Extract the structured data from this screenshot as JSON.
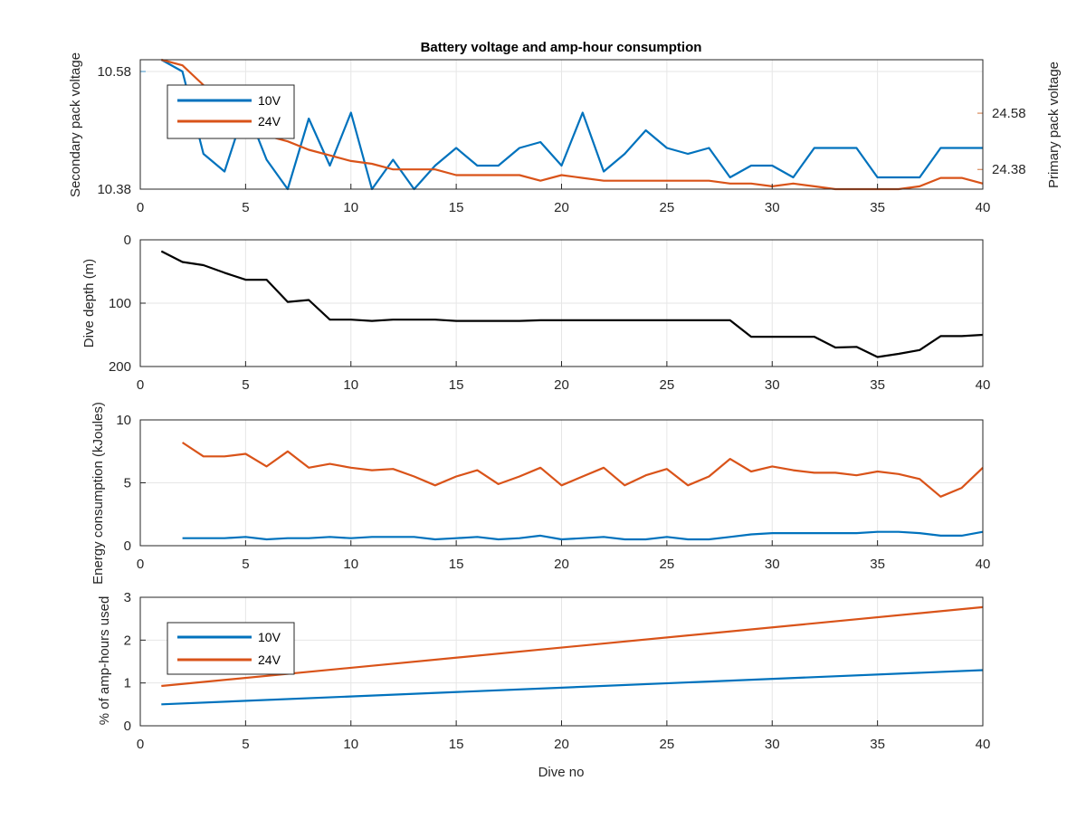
{
  "figure": {
    "title": "Battery voltage and amp-hour consumption",
    "xlabel": "Dive no"
  },
  "colors": {
    "blue": "#0072BD",
    "orange": "#D95319",
    "black": "#000000",
    "left_axis_blue": "#3a8fc4",
    "right_axis_orange": "#d2733a",
    "grid": "#e6e6e6",
    "axes": "#262626"
  },
  "chart_data": [
    {
      "type": "line",
      "title": "Battery voltage and amp-hour consumption",
      "xlabel": "",
      "ylabel": "Secondary pack voltage",
      "ylabel_right": "Primary pack voltage",
      "xlim": [
        0,
        40
      ],
      "ylim": [
        10.38,
        10.6
      ],
      "ylim_right": [
        24.31,
        24.77
      ],
      "xticks": [
        0,
        5,
        10,
        15,
        20,
        25,
        30,
        35,
        40
      ],
      "yticks": [
        "10.38",
        "10.58"
      ],
      "yticks_right": [
        "24.38",
        "24.58"
      ],
      "grid": true,
      "legend": {
        "location": "top-left",
        "entries": [
          "10V",
          "24V"
        ]
      },
      "series": [
        {
          "name": "10V",
          "axis": "left",
          "color": "blue",
          "x": [
            1,
            2,
            3,
            4,
            5,
            6,
            7,
            8,
            9,
            10,
            11,
            12,
            13,
            14,
            15,
            16,
            17,
            18,
            19,
            20,
            21,
            22,
            23,
            24,
            25,
            26,
            27,
            28,
            29,
            30,
            31,
            32,
            33,
            34,
            35,
            36,
            37,
            38,
            39,
            40
          ],
          "y": [
            10.6,
            10.58,
            10.44,
            10.41,
            10.52,
            10.43,
            10.38,
            10.5,
            10.42,
            10.51,
            10.38,
            10.43,
            10.38,
            10.42,
            10.45,
            10.42,
            10.42,
            10.45,
            10.46,
            10.42,
            10.51,
            10.41,
            10.44,
            10.48,
            10.45,
            10.44,
            10.45,
            10.4,
            10.42,
            10.42,
            10.4,
            10.45,
            10.45,
            10.45,
            10.4,
            10.4,
            10.4,
            10.45,
            10.45,
            10.45
          ]
        },
        {
          "name": "24V",
          "axis": "right",
          "color": "orange",
          "x": [
            1,
            2,
            3,
            4,
            5,
            6,
            7,
            8,
            9,
            10,
            11,
            12,
            13,
            14,
            15,
            16,
            17,
            18,
            19,
            20,
            21,
            22,
            23,
            24,
            25,
            26,
            27,
            28,
            29,
            30,
            31,
            32,
            33,
            34,
            35,
            36,
            37,
            38,
            39,
            40
          ],
          "y": [
            24.77,
            24.75,
            24.68,
            24.58,
            24.52,
            24.5,
            24.48,
            24.45,
            24.43,
            24.41,
            24.4,
            24.38,
            24.38,
            24.38,
            24.36,
            24.36,
            24.36,
            24.36,
            24.34,
            24.36,
            24.35,
            24.34,
            24.34,
            24.34,
            24.34,
            24.34,
            24.34,
            24.33,
            24.33,
            24.32,
            24.33,
            24.32,
            24.31,
            24.31,
            24.31,
            24.31,
            24.32,
            24.35,
            24.35,
            24.33
          ]
        }
      ]
    },
    {
      "type": "line",
      "xlabel": "",
      "ylabel": "Dive depth (m)",
      "xlim": [
        0,
        40
      ],
      "ylim": [
        0,
        200
      ],
      "y_reversed": true,
      "xticks": [
        0,
        5,
        10,
        15,
        20,
        25,
        30,
        35,
        40
      ],
      "yticks": [
        0,
        100,
        200
      ],
      "grid": true,
      "series": [
        {
          "color": "black",
          "x": [
            1,
            2,
            3,
            4,
            5,
            6,
            7,
            8,
            9,
            10,
            11,
            12,
            13,
            14,
            15,
            16,
            17,
            18,
            19,
            20,
            21,
            22,
            23,
            24,
            25,
            26,
            27,
            28,
            29,
            30,
            31,
            32,
            33,
            34,
            35,
            36,
            37,
            38,
            39,
            40
          ],
          "y": [
            18,
            35,
            40,
            52,
            63,
            63,
            98,
            95,
            126,
            126,
            128,
            126,
            126,
            126,
            128,
            128,
            128,
            128,
            127,
            127,
            127,
            127,
            127,
            127,
            127,
            127,
            127,
            127,
            153,
            153,
            153,
            153,
            170,
            169,
            185,
            180,
            174,
            152,
            152,
            150
          ]
        }
      ]
    },
    {
      "type": "line",
      "xlabel": "",
      "ylabel": "Energy consumption (kJoules)",
      "xlim": [
        0,
        40
      ],
      "ylim": [
        0,
        10
      ],
      "xticks": [
        0,
        5,
        10,
        15,
        20,
        25,
        30,
        35,
        40
      ],
      "yticks": [
        0,
        5,
        10
      ],
      "grid": true,
      "series": [
        {
          "name": "10V",
          "color": "blue",
          "x": [
            2,
            3,
            4,
            5,
            6,
            7,
            8,
            9,
            10,
            11,
            12,
            13,
            14,
            15,
            16,
            17,
            18,
            19,
            20,
            21,
            22,
            23,
            24,
            25,
            26,
            27,
            28,
            29,
            30,
            31,
            32,
            33,
            34,
            35,
            36,
            37,
            38,
            39,
            40
          ],
          "y": [
            0.6,
            0.6,
            0.6,
            0.7,
            0.5,
            0.6,
            0.6,
            0.7,
            0.6,
            0.7,
            0.7,
            0.7,
            0.5,
            0.6,
            0.7,
            0.5,
            0.6,
            0.8,
            0.5,
            0.6,
            0.7,
            0.5,
            0.5,
            0.7,
            0.5,
            0.5,
            0.7,
            0.9,
            1.0,
            1.0,
            1.0,
            1.0,
            1.0,
            1.1,
            1.1,
            1.0,
            0.8,
            0.8,
            1.1
          ]
        },
        {
          "name": "24V",
          "color": "orange",
          "x": [
            2,
            3,
            4,
            5,
            6,
            7,
            8,
            9,
            10,
            11,
            12,
            13,
            14,
            15,
            16,
            17,
            18,
            19,
            20,
            21,
            22,
            23,
            24,
            25,
            26,
            27,
            28,
            29,
            30,
            31,
            32,
            33,
            34,
            35,
            36,
            37,
            38,
            39,
            40
          ],
          "y": [
            8.2,
            7.1,
            7.1,
            7.3,
            6.3,
            7.5,
            6.2,
            6.5,
            6.2,
            6.0,
            6.1,
            5.5,
            4.8,
            5.5,
            6.0,
            4.9,
            5.5,
            6.2,
            4.8,
            5.5,
            6.2,
            4.8,
            5.6,
            6.1,
            4.8,
            5.5,
            6.9,
            5.9,
            6.3,
            6.0,
            5.8,
            5.8,
            5.6,
            5.9,
            5.7,
            5.3,
            3.9,
            4.6,
            6.2
          ]
        }
      ]
    },
    {
      "type": "line",
      "xlabel": "Dive no",
      "ylabel": "% of amp-hours used",
      "xlim": [
        0,
        40
      ],
      "ylim": [
        0,
        3
      ],
      "xticks": [
        0,
        5,
        10,
        15,
        20,
        25,
        30,
        35,
        40
      ],
      "yticks": [
        0,
        1,
        2,
        3
      ],
      "grid": true,
      "legend": {
        "location": "bottom-left",
        "entries": [
          "10V",
          "24V"
        ]
      },
      "series": [
        {
          "name": "10V",
          "color": "blue",
          "x": [
            1,
            40
          ],
          "y": [
            0.5,
            1.3
          ]
        },
        {
          "name": "24V",
          "color": "orange",
          "x": [
            1,
            40
          ],
          "y": [
            0.93,
            2.77
          ]
        }
      ]
    }
  ]
}
